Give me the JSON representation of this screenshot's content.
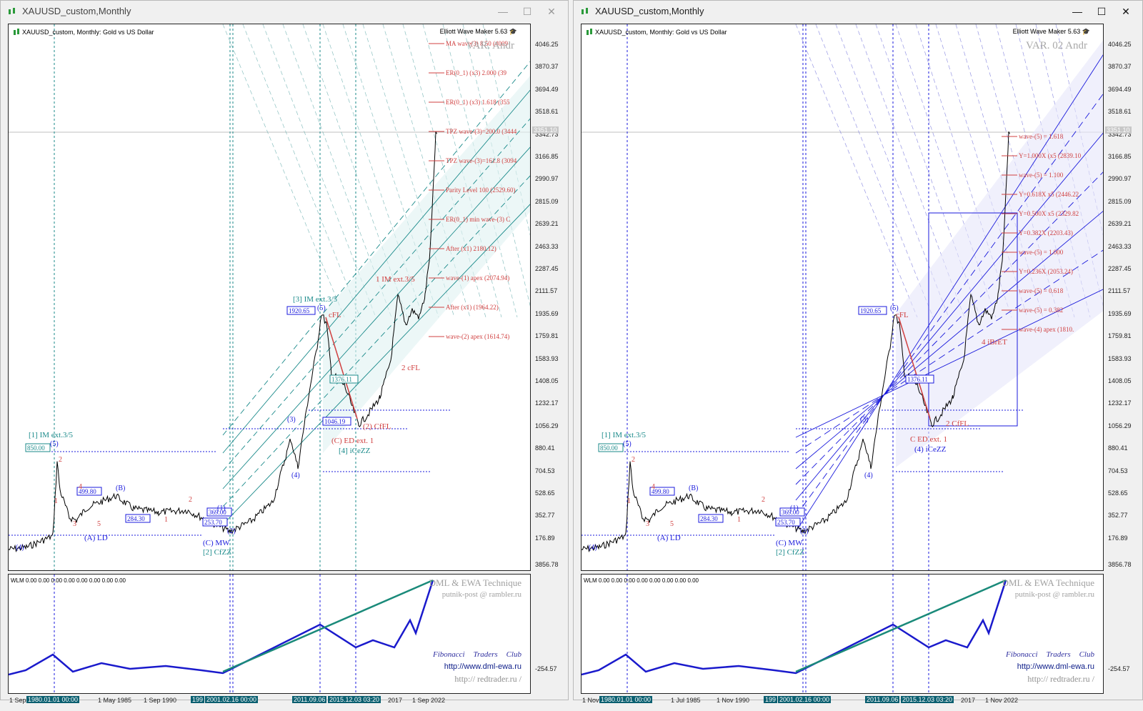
{
  "windows": [
    {
      "title": "XAUUSD_custom,Monthly",
      "symbol_line": "XAUUSD_custom, Monthly:  Gold vs US Dollar",
      "indicator": "Elliott Wave Maker 5.63",
      "variant": "VAR. Andr",
      "current_price": "3351.10",
      "time_ticks": [
        "1 Sep",
        "1 May 1985",
        "1 Sep 1990",
        "1 Sep 2022",
        "2017"
      ],
      "time_tags": [
        "1980.01.01 00:00",
        "199",
        "2001.02.16 00:00",
        "2011.09.06",
        "2015.12.03 03:20"
      ],
      "price_labels": [
        "MA wave(3) 8.50 (4009",
        "ER(0_1) (x3) 2.000 (39",
        "ER(0_1) (x3) 1.618 (355",
        "TPZ wave-(3)=200.0 (3444",
        "TPZ wave-(3)=161.8 (3094",
        "Parity Level 100 (2529.60)",
        "ER(0_1) min wave-(3) C",
        "After (x1) 2180.12)",
        "wave-(1) apex (2074.94)",
        "After (x1) (1964.22)",
        "wave-(2) apex (1614.74)"
      ],
      "wave_labels": [
        "[1] IM ext.3/5",
        "(A) LD",
        "(C) MW",
        "[2] CfZZ",
        "[3] IM ext.3/5",
        "cFL",
        "(C) ED ext. 1",
        "[4] iCeZZ",
        "(2) CfFL",
        "1 IM ext.3/5",
        "2 cFL"
      ],
      "price_boxes": [
        "850.00",
        "284.30",
        "499.80",
        "369.00",
        "253.70",
        "1920.65",
        "1046.19",
        "1376.11"
      ]
    },
    {
      "title": "XAUUSD_custom,Monthly",
      "symbol_line": "XAUUSD_custom, Monthly:  Gold vs US Dollar",
      "indicator": "Elliott Wave Maker 5.63",
      "variant": "VAR. 02 Andr",
      "current_price": "3351.10",
      "time_ticks": [
        "1 Nov",
        "1 Jul 1985",
        "1 Nov 1990",
        "1 Nov 2022",
        "2017"
      ],
      "time_tags": [
        "1980.01.01 00:00",
        "199",
        "2001.02.16 00:00",
        "2011.09.06",
        "2015.12.03 03:20"
      ],
      "price_labels": [
        "wave-(5) = 1.618",
        "Y=1.000X (x5 (2839.10",
        "wave-(5) = 1.100",
        "Y=0.618X x5 (2446.22",
        "Y=0.500X x5 (2329.82",
        "Y=0.382X (2203.43)",
        "wave-(5) = 1.000",
        "Y=0.236X (2053.24)",
        "wave-(5) = 0.618",
        "wave-(5) = 0.382",
        "wave-(4) apex (1810."
      ],
      "wave_labels": [
        "[1] IM ext.3/5",
        "(A) LD",
        "(C) MW",
        "[2] CfZZ",
        "C ED ext. 1",
        "(4) iCeZZ",
        "2 CfFL",
        "cFL",
        "4 iBrET"
      ],
      "price_boxes": [
        "850.00",
        "284.30",
        "499.80",
        "369.00",
        "253.70",
        "1920.65",
        "1376.11"
      ]
    }
  ],
  "price_axis": [
    "4046.25",
    "3870.37",
    "3694.49",
    "3518.61",
    "3342.73",
    "3166.85",
    "2990.97",
    "2815.09",
    "2639.21",
    "2463.33",
    "2287.45",
    "2111.57",
    "1935.69",
    "1759.81",
    "1583.93",
    "1408.05",
    "1232.17",
    "1056.29",
    "880.41",
    "704.53",
    "528.65",
    "352.77",
    "176.89"
  ],
  "indicator_axis": [
    "3856.78",
    "-254.57"
  ],
  "indicator_label": "WLM 0.00 0.00 0.00 0.00 0.00 0.00 0.00 0.00",
  "branding": {
    "dml": "DML & EWA Technique",
    "mail": "putnik-post @ rambler.ru",
    "ftc": [
      "Fibonacci",
      "Traders",
      "Club"
    ],
    "url1": "http://www.dml-ewa.ru",
    "url2": "http:// redtrader.ru /"
  },
  "colors": {
    "blue": "#1a1adc",
    "teal": "#1a8a8a",
    "red": "#d04040",
    "price": "#000000",
    "indicator_line": "#1a1acc",
    "indicator_teal": "#1a8a7a"
  }
}
